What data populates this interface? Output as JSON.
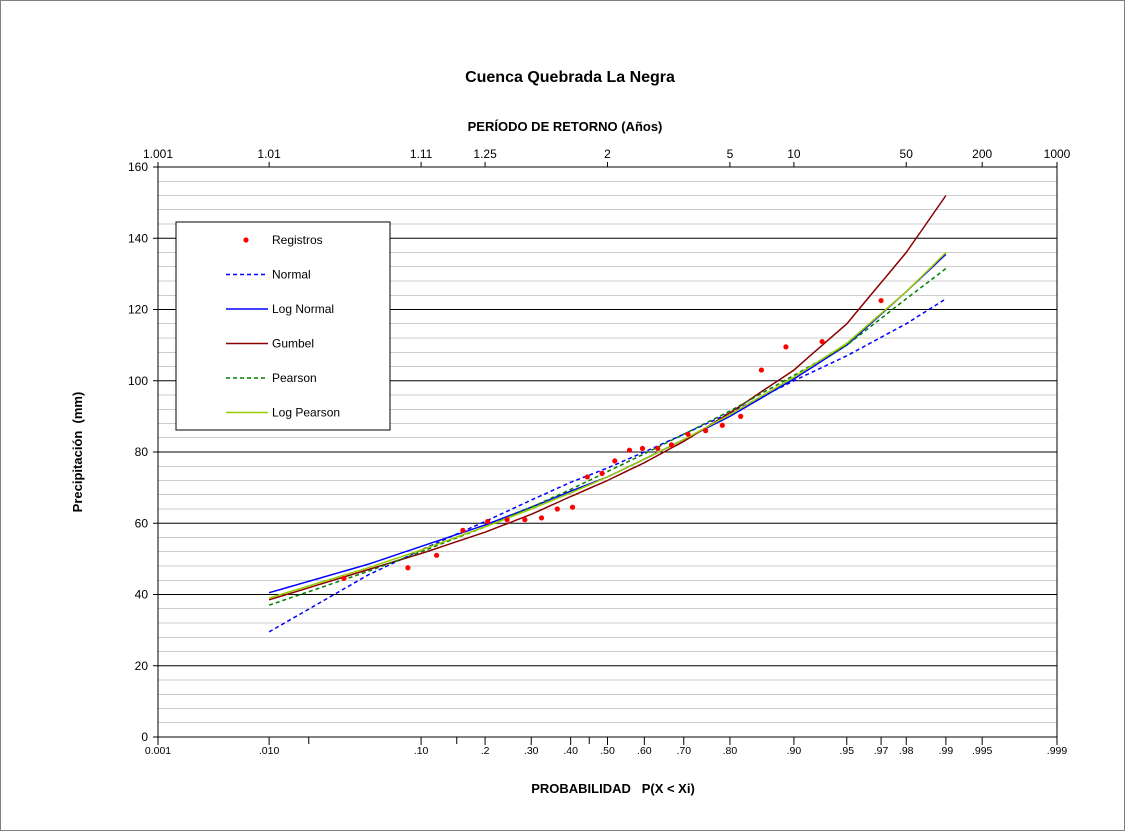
{
  "chart_data": {
    "type": "scatter",
    "title": "Cuenca Quebrada La Negra",
    "secondary_axis_title": "PERÍODO DE RETORNO (Años)",
    "xlabel": "PROBABILIDAD   P(X < Xi)",
    "ylabel": "Precipitación  (mm)",
    "x_scale": "normal-probability",
    "xlim": [
      0.001,
      0.999
    ],
    "ylim": [
      0,
      160
    ],
    "y_major_step": 20,
    "y_minor_step": 4,
    "grid": true,
    "legend_position": "upper-left",
    "y_ticks": [
      "0",
      "20",
      "40",
      "60",
      "80",
      "100",
      "120",
      "140",
      "160"
    ],
    "x_ticks": [
      {
        "p": 0.001,
        "label": "0.001"
      },
      {
        "p": 0.01,
        "label": ".010"
      },
      {
        "p": 0.1,
        "label": ".10"
      },
      {
        "p": 0.2,
        "label": ".2"
      },
      {
        "p": 0.3,
        "label": ".30"
      },
      {
        "p": 0.4,
        "label": ".40"
      },
      {
        "p": 0.5,
        "label": ".50"
      },
      {
        "p": 0.6,
        "label": ".60"
      },
      {
        "p": 0.7,
        "label": ".70"
      },
      {
        "p": 0.8,
        "label": ".80"
      },
      {
        "p": 0.9,
        "label": ".90"
      },
      {
        "p": 0.95,
        "label": ".95"
      },
      {
        "p": 0.97,
        "label": ".97"
      },
      {
        "p": 0.98,
        "label": ".98"
      },
      {
        "p": 0.99,
        "label": ".99"
      },
      {
        "p": 0.995,
        "label": ".995"
      },
      {
        "p": 0.999,
        "label": ".999"
      }
    ],
    "x_minor_ticks": [
      0.02,
      0.15,
      0.45
    ],
    "top_ticks": [
      {
        "p": 0.001,
        "label": "1.001"
      },
      {
        "p": 0.01,
        "label": "1.01"
      },
      {
        "p": 0.1,
        "label": "1.11"
      },
      {
        "p": 0.2,
        "label": "1.25"
      },
      {
        "p": 0.5,
        "label": "2"
      },
      {
        "p": 0.8,
        "label": "5"
      },
      {
        "p": 0.9,
        "label": "10"
      },
      {
        "p": 0.98,
        "label": "50"
      },
      {
        "p": 0.995,
        "label": "200"
      },
      {
        "p": 0.999,
        "label": "1000"
      }
    ],
    "series": [
      {
        "name": "Registros",
        "kind": "points",
        "color": "#ff0000",
        "x": [
          0.035,
          0.085,
          0.12,
          0.16,
          0.205,
          0.245,
          0.285,
          0.325,
          0.365,
          0.405,
          0.445,
          0.485,
          0.52,
          0.56,
          0.595,
          0.635,
          0.67,
          0.71,
          0.75,
          0.785,
          0.82,
          0.855,
          0.89,
          0.93,
          0.97
        ],
        "y": [
          44.5,
          47.5,
          51,
          58,
          60.5,
          61,
          61,
          61.5,
          64,
          64.5,
          73,
          74,
          77.5,
          80.5,
          81,
          81,
          82,
          85,
          86,
          87.5,
          90,
          103,
          109.5,
          111,
          122.5
        ]
      },
      {
        "name": "Normal",
        "kind": "line",
        "dash": true,
        "color": "#0000ff",
        "x": [
          0.01,
          0.05,
          0.1,
          0.2,
          0.3,
          0.4,
          0.5,
          0.6,
          0.7,
          0.8,
          0.9,
          0.95,
          0.98,
          0.99
        ],
        "y": [
          29.5,
          45.5,
          52.5,
          60.5,
          66.5,
          71.5,
          75.5,
          80,
          85,
          91,
          100,
          107,
          116,
          123
        ]
      },
      {
        "name": "Log Normal",
        "kind": "line",
        "color": "#0000ff",
        "x": [
          0.01,
          0.05,
          0.1,
          0.2,
          0.3,
          0.4,
          0.5,
          0.6,
          0.7,
          0.8,
          0.9,
          0.95,
          0.98,
          0.99
        ],
        "y": [
          40.5,
          48.5,
          53.5,
          59.5,
          64.5,
          69,
          73,
          78,
          83.5,
          90,
          100.5,
          110,
          125,
          135.5
        ]
      },
      {
        "name": "Gumbel",
        "kind": "line",
        "color": "#8b0000",
        "x": [
          0.01,
          0.05,
          0.1,
          0.2,
          0.3,
          0.4,
          0.5,
          0.6,
          0.7,
          0.8,
          0.9,
          0.95,
          0.98,
          0.99
        ],
        "y": [
          38.5,
          47,
          51.5,
          57.5,
          62.5,
          67.5,
          72,
          77,
          83,
          91,
          103,
          116,
          136,
          152
        ]
      },
      {
        "name": "Pearson",
        "kind": "line",
        "dash": true,
        "color": "#008000",
        "x": [
          0.01,
          0.05,
          0.1,
          0.2,
          0.3,
          0.4,
          0.5,
          0.6,
          0.7,
          0.8,
          0.9,
          0.95,
          0.98,
          0.99
        ],
        "y": [
          37,
          46.5,
          52,
          59,
          64.5,
          69.5,
          74.5,
          79.5,
          85,
          91.5,
          101.5,
          110,
          123,
          131.5
        ]
      },
      {
        "name": "Log Pearson",
        "kind": "line",
        "color": "#99cc00",
        "x": [
          0.01,
          0.05,
          0.1,
          0.2,
          0.3,
          0.4,
          0.5,
          0.6,
          0.7,
          0.8,
          0.9,
          0.95,
          0.98,
          0.99
        ],
        "y": [
          39,
          47.5,
          52.5,
          59,
          64,
          68.5,
          73,
          78,
          83.5,
          90.5,
          101,
          110.5,
          125,
          136
        ]
      }
    ]
  }
}
